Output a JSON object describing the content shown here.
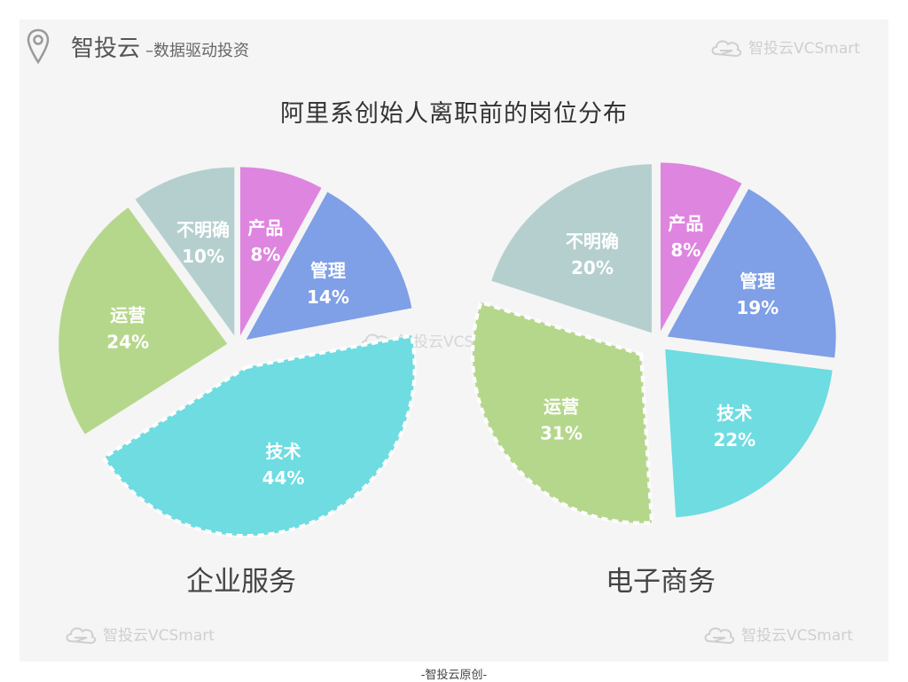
{
  "brand": {
    "name": "智投云",
    "separator": "–",
    "subtitle": "数据驱动投资"
  },
  "watermark": {
    "text": "智投云VCSmart"
  },
  "footer": "-智投云原创-",
  "chart_data": [
    {
      "type": "pie",
      "title": "阿里系创始人离职前的岗位分布",
      "caption": "企业服务",
      "slices": [
        {
          "label": "产品",
          "value": 8,
          "value_text": "8%",
          "color": "#de85df"
        },
        {
          "label": "管理",
          "value": 14,
          "value_text": "14%",
          "color": "#7f9fe6"
        },
        {
          "label": "技术",
          "value": 44,
          "value_text": "44%",
          "color": "#6edce1",
          "highlighted": true
        },
        {
          "label": "运营",
          "value": 24,
          "value_text": "24%",
          "color": "#b5d78b"
        },
        {
          "label": "不明确",
          "value": 10,
          "value_text": "10%",
          "color": "#b5cfcf"
        }
      ]
    },
    {
      "type": "pie",
      "title": "阿里系创始人离职前的岗位分布",
      "caption": "电子商务",
      "slices": [
        {
          "label": "产品",
          "value": 8,
          "value_text": "8%",
          "color": "#de85df"
        },
        {
          "label": "管理",
          "value": 19,
          "value_text": "19%",
          "color": "#7f9fe6"
        },
        {
          "label": "技术",
          "value": 22,
          "value_text": "22%",
          "color": "#6edce1"
        },
        {
          "label": "运营",
          "value": 31,
          "value_text": "31%",
          "color": "#b5d78b",
          "highlighted": true
        },
        {
          "label": "不明确",
          "value": 20,
          "value_text": "20%",
          "color": "#b5cfcf"
        }
      ]
    }
  ]
}
